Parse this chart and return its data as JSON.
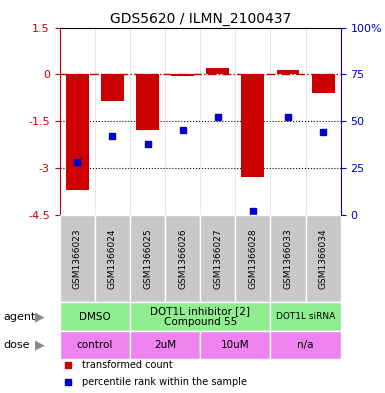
{
  "title": "GDS5620 / ILMN_2100437",
  "samples": [
    "GSM1366023",
    "GSM1366024",
    "GSM1366025",
    "GSM1366026",
    "GSM1366027",
    "GSM1366028",
    "GSM1366033",
    "GSM1366034"
  ],
  "red_values": [
    -3.7,
    -0.85,
    -1.8,
    -0.05,
    0.2,
    -3.3,
    0.15,
    -0.6
  ],
  "blue_values": [
    28,
    42,
    38,
    45,
    52,
    2,
    52,
    44
  ],
  "ylim_left": [
    -4.5,
    1.5
  ],
  "ylim_right": [
    0,
    100
  ],
  "yticks_left": [
    1.5,
    0,
    -1.5,
    -3,
    -4.5
  ],
  "yticks_right": [
    100,
    75,
    50,
    25,
    0
  ],
  "dotted_lines": [
    -1.5,
    -3
  ],
  "red_color": "#CC0000",
  "blue_color": "#0000CC",
  "sample_bg": "#C8C8C8",
  "agent_color": "#90EE90",
  "dose_color": "#EE82EE",
  "bar_width": 0.65,
  "agent_groups": [
    {
      "label": "DMSO",
      "start": 0,
      "end": 1
    },
    {
      "label": "DOT1L inhibitor [2]\nCompound 55",
      "start": 2,
      "end": 5
    },
    {
      "label": "DOT1L siRNA",
      "start": 6,
      "end": 7
    }
  ],
  "dose_groups": [
    {
      "label": "control",
      "start": 0,
      "end": 1
    },
    {
      "label": "2uM",
      "start": 2,
      "end": 3
    },
    {
      "label": "10uM",
      "start": 4,
      "end": 5
    },
    {
      "label": "n/a",
      "start": 6,
      "end": 7
    }
  ]
}
